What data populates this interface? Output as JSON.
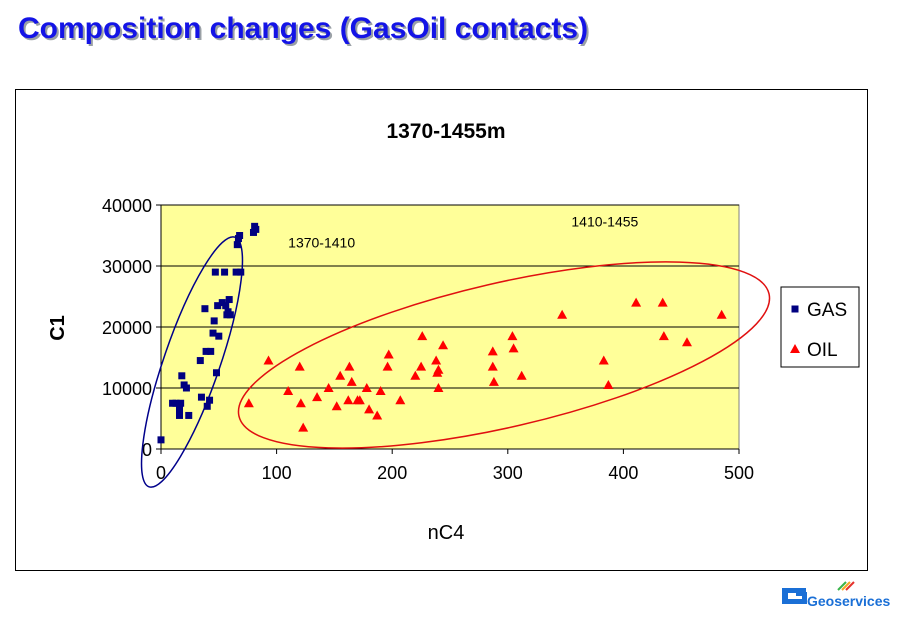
{
  "slide": {
    "title": "Composition changes (GasOil contacts)"
  },
  "logo": {
    "text": "Geoservices",
    "colors": [
      "#1a6fd6",
      "#39b54a",
      "#f5a623",
      "#e5322d",
      "#9b59b6"
    ]
  },
  "chart_data": {
    "type": "scatter",
    "title": "1370-1455m",
    "xlabel": "nC4",
    "ylabel": "C1",
    "xlim": [
      0,
      500
    ],
    "ylim": [
      0,
      40000
    ],
    "xticks": [
      0,
      100,
      200,
      300,
      400,
      500
    ],
    "yticks": [
      0,
      10000,
      20000,
      30000,
      40000
    ],
    "grid": "horizontal",
    "plot_background": "#ffff99",
    "legend_position": "right",
    "annotations": [
      {
        "text": "1370-1410",
        "x": 110,
        "y": 33000
      },
      {
        "text": "1410-1455",
        "x": 355,
        "y": 36500
      }
    ],
    "ellipses": [
      {
        "label": "1370-1410",
        "color": "#00008b"
      },
      {
        "label": "1410-1455",
        "color": "#e01010"
      }
    ],
    "series": [
      {
        "name": "GAS",
        "marker": "square",
        "color": "#000080",
        "points": [
          [
            0,
            1500
          ],
          [
            10,
            7500
          ],
          [
            13,
            7500
          ],
          [
            16,
            6500
          ],
          [
            17,
            7500
          ],
          [
            16,
            5500
          ],
          [
            18,
            12000
          ],
          [
            20,
            10500
          ],
          [
            22,
            10000
          ],
          [
            24,
            5500
          ],
          [
            34,
            14500
          ],
          [
            35,
            8500
          ],
          [
            38,
            23000
          ],
          [
            39,
            16000
          ],
          [
            40,
            7000
          ],
          [
            42,
            8000
          ],
          [
            43,
            16000
          ],
          [
            45,
            19000
          ],
          [
            46,
            21000
          ],
          [
            47,
            29000
          ],
          [
            48,
            12500
          ],
          [
            49,
            23500
          ],
          [
            50,
            18500
          ],
          [
            53,
            24000
          ],
          [
            55,
            29000
          ],
          [
            56,
            23500
          ],
          [
            57,
            22000
          ],
          [
            58,
            22500
          ],
          [
            59,
            24500
          ],
          [
            60,
            22000
          ],
          [
            65,
            29000
          ],
          [
            66,
            33500
          ],
          [
            67,
            34500
          ],
          [
            68,
            35000
          ],
          [
            69,
            29000
          ],
          [
            80,
            35500
          ],
          [
            81,
            36500
          ],
          [
            82,
            36000
          ]
        ]
      },
      {
        "name": "OIL",
        "marker": "triangle",
        "color": "#ff0000",
        "points": [
          [
            76,
            7500
          ],
          [
            93,
            14500
          ],
          [
            110,
            9500
          ],
          [
            120,
            13500
          ],
          [
            121,
            7500
          ],
          [
            123,
            3500
          ],
          [
            135,
            8500
          ],
          [
            145,
            10000
          ],
          [
            152,
            7000
          ],
          [
            155,
            12000
          ],
          [
            162,
            8000
          ],
          [
            163,
            13500
          ],
          [
            165,
            11000
          ],
          [
            170,
            8000
          ],
          [
            172,
            8000
          ],
          [
            178,
            10000
          ],
          [
            180,
            6500
          ],
          [
            187,
            5500
          ],
          [
            190,
            9500
          ],
          [
            196,
            13500
          ],
          [
            197,
            15500
          ],
          [
            207,
            8000
          ],
          [
            220,
            12000
          ],
          [
            225,
            13500
          ],
          [
            226,
            18500
          ],
          [
            238,
            14500
          ],
          [
            239,
            12500
          ],
          [
            240,
            13000
          ],
          [
            240,
            10000
          ],
          [
            244,
            17000
          ],
          [
            287,
            16000
          ],
          [
            287,
            13500
          ],
          [
            288,
            11000
          ],
          [
            304,
            18500
          ],
          [
            305,
            16500
          ],
          [
            312,
            12000
          ],
          [
            347,
            22000
          ],
          [
            383,
            14500
          ],
          [
            387,
            10500
          ],
          [
            411,
            24000
          ],
          [
            434,
            24000
          ],
          [
            435,
            18500
          ],
          [
            455,
            17500
          ],
          [
            485,
            22000
          ]
        ]
      }
    ]
  }
}
